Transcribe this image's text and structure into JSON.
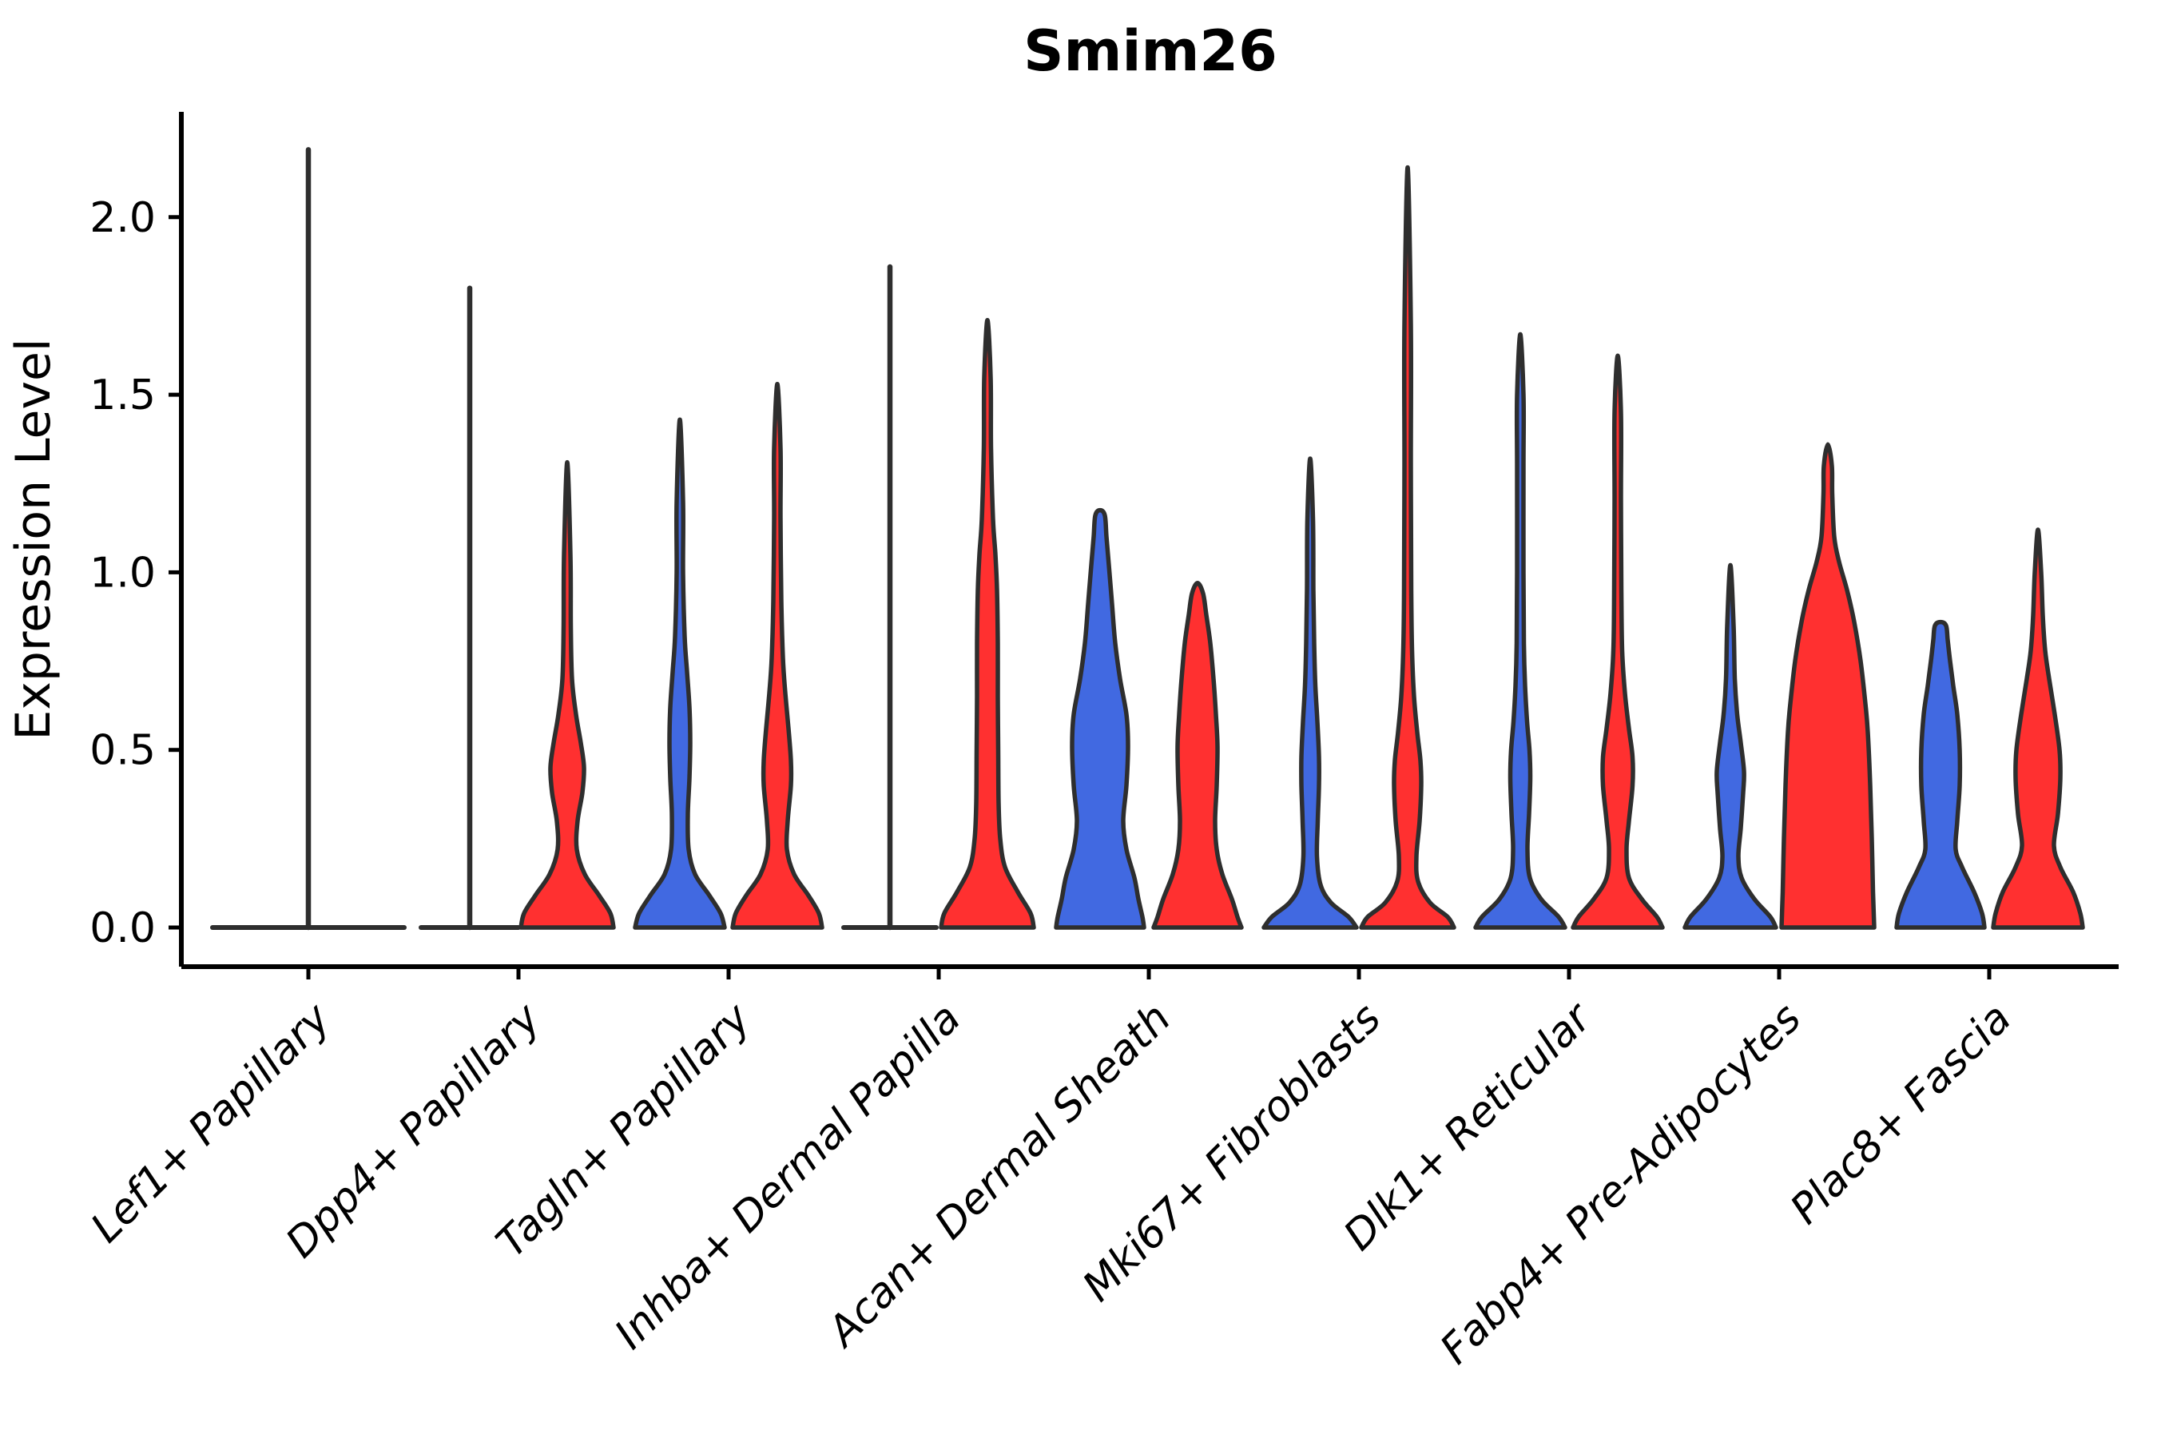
{
  "chart_data": {
    "type": "violin",
    "title": "Smim26",
    "ylabel": "Expression Level",
    "ylim": [
      -0.12,
      2.3
    ],
    "yticks": [
      "0.0",
      "0.5",
      "1.0",
      "1.5",
      "2.0"
    ],
    "ytick_values": [
      0.0,
      0.5,
      1.0,
      1.5,
      2.0
    ],
    "grid": "off",
    "legend": "none",
    "categories": [
      "Lef1+ Papillary",
      "Dpp4+ Papillary",
      "Tagln+ Papillary",
      "Inhba+ Dermal Papilla",
      "Acan+ Dermal Sheath",
      "Mki67+ Fibroblasts",
      "Dlk1+ Reticular",
      "Fabp4+ Pre-Adipocytes",
      "Plac8+ Fascia"
    ],
    "group_colors": {
      "blue": "#4169E1",
      "red": "#FF3030",
      "single": "none"
    },
    "outline_color": "#2e2e2e",
    "max_by_group": [
      {
        "category": "Lef1+ Papillary",
        "single": 2.19
      },
      {
        "category": "Dpp4+ Papillary",
        "blue": 1.8,
        "red": 1.31
      },
      {
        "category": "Tagln+ Papillary",
        "blue": 1.43,
        "red": 1.53
      },
      {
        "category": "Inhba+ Dermal Papilla",
        "blue": 1.86,
        "red": 1.71
      },
      {
        "category": "Acan+ Dermal Sheath",
        "blue": 1.17,
        "red": 0.97
      },
      {
        "category": "Mki67+ Fibroblasts",
        "blue": 1.32,
        "red": 2.14
      },
      {
        "category": "Dlk1+ Reticular",
        "blue": 1.67,
        "red": 1.61
      },
      {
        "category": "Fabp4+ Pre-Adipocytes",
        "blue": 1.02,
        "red": 1.36
      },
      {
        "category": "Plac8+ Fascia",
        "blue": 0.86,
        "red": 1.12
      }
    ],
    "violins": [
      {
        "cat": 0,
        "group": "single",
        "shape": "flat_spike",
        "flat_halfwidth": 120,
        "spike_max": 2.19
      },
      {
        "cat": 1,
        "group": "blue",
        "shape": "flat_spike",
        "flat_halfwidth": 61,
        "spike_max": 1.8
      },
      {
        "cat": 1,
        "group": "red",
        "shape": "violin",
        "max": 1.31,
        "profile_vw": [
          [
            0,
            58
          ],
          [
            0.04,
            54
          ],
          [
            0.09,
            40
          ],
          [
            0.15,
            22
          ],
          [
            0.22,
            12
          ],
          [
            0.3,
            13
          ],
          [
            0.38,
            19
          ],
          [
            0.45,
            21
          ],
          [
            0.52,
            17
          ],
          [
            0.6,
            11
          ],
          [
            0.7,
            6
          ],
          [
            0.85,
            4.5
          ],
          [
            1.05,
            4
          ],
          [
            1.31,
            0
          ]
        ]
      },
      {
        "cat": 2,
        "group": "blue",
        "shape": "violin",
        "max": 1.43,
        "profile_vw": [
          [
            0,
            56
          ],
          [
            0.04,
            51
          ],
          [
            0.09,
            37
          ],
          [
            0.15,
            19
          ],
          [
            0.22,
            11
          ],
          [
            0.32,
            10
          ],
          [
            0.42,
            12
          ],
          [
            0.52,
            13
          ],
          [
            0.62,
            12
          ],
          [
            0.72,
            9
          ],
          [
            0.82,
            6
          ],
          [
            1.0,
            4
          ],
          [
            1.2,
            4
          ],
          [
            1.43,
            0
          ]
        ]
      },
      {
        "cat": 2,
        "group": "red",
        "shape": "violin",
        "max": 1.53,
        "profile_vw": [
          [
            0,
            56
          ],
          [
            0.04,
            52
          ],
          [
            0.09,
            39
          ],
          [
            0.15,
            21
          ],
          [
            0.22,
            12
          ],
          [
            0.3,
            13
          ],
          [
            0.4,
            17
          ],
          [
            0.47,
            17
          ],
          [
            0.56,
            14
          ],
          [
            0.66,
            10
          ],
          [
            0.76,
            7
          ],
          [
            0.92,
            5
          ],
          [
            1.15,
            4
          ],
          [
            1.35,
            4
          ],
          [
            1.53,
            0
          ]
        ]
      },
      {
        "cat": 3,
        "group": "blue",
        "shape": "flat_spike",
        "flat_halfwidth": 58,
        "spike_max": 1.86
      },
      {
        "cat": 3,
        "group": "red",
        "shape": "violin",
        "max": 1.71,
        "profile_vw": [
          [
            0,
            58
          ],
          [
            0.04,
            54
          ],
          [
            0.1,
            38
          ],
          [
            0.17,
            22
          ],
          [
            0.25,
            16
          ],
          [
            0.35,
            14
          ],
          [
            0.5,
            13.5
          ],
          [
            0.65,
            13
          ],
          [
            0.8,
            13
          ],
          [
            0.95,
            12
          ],
          [
            1.05,
            10
          ],
          [
            1.15,
            7
          ],
          [
            1.35,
            4.5
          ],
          [
            1.55,
            4
          ],
          [
            1.71,
            0
          ]
        ]
      },
      {
        "cat": 4,
        "group": "blue",
        "shape": "violin",
        "max": 1.17,
        "profile_vw": [
          [
            0,
            55
          ],
          [
            0.03,
            53
          ],
          [
            0.08,
            48
          ],
          [
            0.14,
            43
          ],
          [
            0.22,
            33
          ],
          [
            0.3,
            29
          ],
          [
            0.4,
            33
          ],
          [
            0.51,
            35
          ],
          [
            0.6,
            33
          ],
          [
            0.7,
            25
          ],
          [
            0.8,
            19
          ],
          [
            0.91,
            15
          ],
          [
            1.02,
            11
          ],
          [
            1.1,
            8
          ],
          [
            1.16,
            6
          ],
          [
            1.175,
            0
          ]
        ]
      },
      {
        "cat": 4,
        "group": "red",
        "shape": "violin",
        "max": 0.97,
        "profile_vw": [
          [
            0,
            55
          ],
          [
            0.03,
            50
          ],
          [
            0.08,
            43
          ],
          [
            0.15,
            31
          ],
          [
            0.22,
            24
          ],
          [
            0.3,
            22
          ],
          [
            0.4,
            24
          ],
          [
            0.51,
            25
          ],
          [
            0.6,
            23
          ],
          [
            0.7,
            20
          ],
          [
            0.8,
            16
          ],
          [
            0.88,
            11
          ],
          [
            0.94,
            7
          ],
          [
            0.97,
            0
          ]
        ]
      },
      {
        "cat": 5,
        "group": "blue",
        "shape": "violin",
        "max": 1.32,
        "profile_vw": [
          [
            0,
            58
          ],
          [
            0.03,
            48
          ],
          [
            0.07,
            26
          ],
          [
            0.12,
            13
          ],
          [
            0.2,
            8.5
          ],
          [
            0.3,
            9.5
          ],
          [
            0.4,
            11
          ],
          [
            0.48,
            11
          ],
          [
            0.58,
            9
          ],
          [
            0.68,
            6.5
          ],
          [
            0.8,
            5
          ],
          [
            0.95,
            4
          ],
          [
            1.15,
            3.5
          ],
          [
            1.32,
            0
          ]
        ]
      },
      {
        "cat": 5,
        "group": "red",
        "shape": "violin",
        "max": 2.14,
        "profile_vw": [
          [
            0,
            58
          ],
          [
            0.03,
            50
          ],
          [
            0.07,
            28
          ],
          [
            0.13,
            13
          ],
          [
            0.2,
            11
          ],
          [
            0.3,
            15
          ],
          [
            0.4,
            17
          ],
          [
            0.47,
            16
          ],
          [
            0.55,
            12
          ],
          [
            0.65,
            8
          ],
          [
            0.78,
            5.5
          ],
          [
            0.95,
            4.5
          ],
          [
            1.3,
            4
          ],
          [
            1.7,
            4
          ],
          [
            2.14,
            0
          ]
        ]
      },
      {
        "cat": 6,
        "group": "blue",
        "shape": "violin",
        "max": 1.67,
        "profile_vw": [
          [
            0,
            56
          ],
          [
            0.03,
            48
          ],
          [
            0.08,
            26
          ],
          [
            0.14,
            12
          ],
          [
            0.22,
            9
          ],
          [
            0.32,
            11
          ],
          [
            0.42,
            12.5
          ],
          [
            0.5,
            11.5
          ],
          [
            0.58,
            8.5
          ],
          [
            0.68,
            6
          ],
          [
            0.8,
            4.5
          ],
          [
            1.0,
            4
          ],
          [
            1.3,
            4
          ],
          [
            1.5,
            4
          ],
          [
            1.67,
            0
          ]
        ]
      },
      {
        "cat": 6,
        "group": "red",
        "shape": "violin",
        "max": 1.61,
        "profile_vw": [
          [
            0,
            56
          ],
          [
            0.03,
            49
          ],
          [
            0.08,
            30
          ],
          [
            0.14,
            14
          ],
          [
            0.22,
            11
          ],
          [
            0.3,
            14
          ],
          [
            0.4,
            18.5
          ],
          [
            0.48,
            18.5
          ],
          [
            0.56,
            14
          ],
          [
            0.66,
            9
          ],
          [
            0.78,
            5.5
          ],
          [
            0.95,
            4.5
          ],
          [
            1.2,
            4
          ],
          [
            1.45,
            4
          ],
          [
            1.61,
            0
          ]
        ]
      },
      {
        "cat": 7,
        "group": "blue",
        "shape": "violin",
        "max": 1.02,
        "profile_vw": [
          [
            0,
            57
          ],
          [
            0.03,
            50
          ],
          [
            0.08,
            30
          ],
          [
            0.14,
            14
          ],
          [
            0.2,
            10
          ],
          [
            0.28,
            13
          ],
          [
            0.38,
            16
          ],
          [
            0.44,
            17
          ],
          [
            0.52,
            13
          ],
          [
            0.6,
            8.5
          ],
          [
            0.7,
            5.5
          ],
          [
            0.85,
            4
          ],
          [
            1.02,
            0
          ]
        ]
      },
      {
        "cat": 7,
        "group": "red",
        "shape": "violin",
        "max": 1.36,
        "profile_vw": [
          [
            0,
            58
          ],
          [
            0.1,
            56.5
          ],
          [
            0.25,
            55
          ],
          [
            0.4,
            53
          ],
          [
            0.55,
            50
          ],
          [
            0.63,
            47
          ],
          [
            0.75,
            41
          ],
          [
            0.86,
            33
          ],
          [
            0.95,
            24
          ],
          [
            1.03,
            14
          ],
          [
            1.1,
            8
          ],
          [
            1.22,
            5.5
          ],
          [
            1.3,
            5
          ],
          [
            1.36,
            0
          ]
        ]
      },
      {
        "cat": 8,
        "group": "blue",
        "shape": "violin",
        "max": 0.86,
        "profile_vw": [
          [
            0,
            55
          ],
          [
            0.04,
            52
          ],
          [
            0.1,
            42
          ],
          [
            0.17,
            27
          ],
          [
            0.22,
            19
          ],
          [
            0.3,
            21
          ],
          [
            0.4,
            24
          ],
          [
            0.5,
            24
          ],
          [
            0.6,
            21
          ],
          [
            0.68,
            16
          ],
          [
            0.75,
            12
          ],
          [
            0.81,
            9
          ],
          [
            0.85,
            7
          ],
          [
            0.86,
            0
          ]
        ]
      },
      {
        "cat": 8,
        "group": "red",
        "shape": "violin",
        "max": 1.12,
        "profile_vw": [
          [
            0,
            56
          ],
          [
            0.04,
            53
          ],
          [
            0.1,
            44
          ],
          [
            0.17,
            28
          ],
          [
            0.23,
            20
          ],
          [
            0.32,
            25
          ],
          [
            0.42,
            28
          ],
          [
            0.5,
            27
          ],
          [
            0.6,
            21
          ],
          [
            0.7,
            14
          ],
          [
            0.78,
            9
          ],
          [
            0.88,
            6
          ],
          [
            1.0,
            4
          ],
          [
            1.12,
            0
          ]
        ]
      }
    ]
  }
}
